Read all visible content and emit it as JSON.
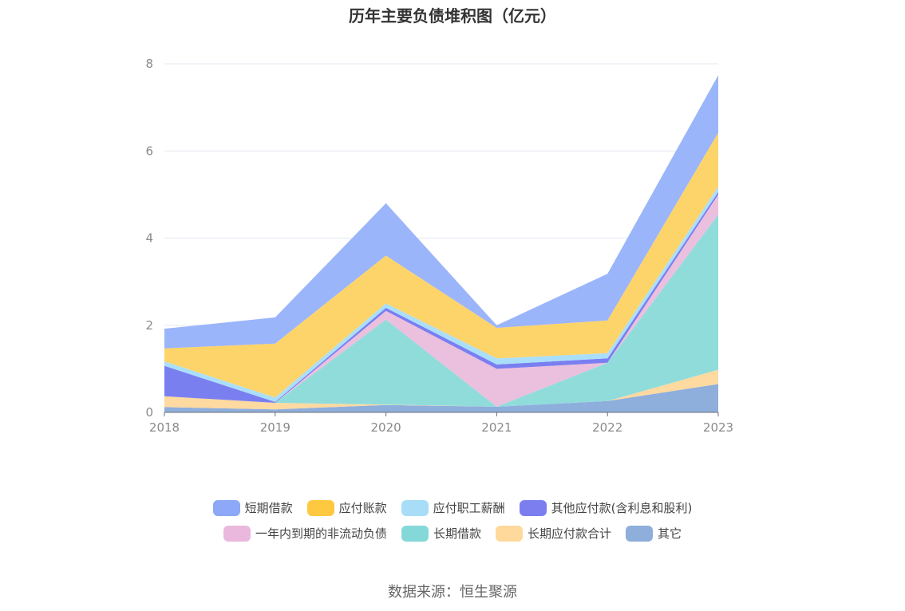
{
  "title": "历年主要负债堆积图（亿元）",
  "source": "数据来源：恒生聚源",
  "chart_data": {
    "type": "area",
    "stacked": true,
    "title": "历年主要负债堆积图（亿元）",
    "xlabel": "",
    "ylabel": "",
    "x": [
      "2018",
      "2019",
      "2020",
      "2021",
      "2022",
      "2023"
    ],
    "ylim": [
      0,
      8
    ],
    "yticks": [
      0,
      2,
      4,
      6,
      8
    ],
    "grid": true,
    "legend_position": "bottom",
    "series": [
      {
        "name": "其它",
        "color": "#8eaedc",
        "values": [
          0.12,
          0.07,
          0.17,
          0.13,
          0.26,
          0.65
        ]
      },
      {
        "name": "长期应付款合计",
        "color": "#fed9a0",
        "values": [
          0.25,
          0.15,
          0.01,
          0.0,
          0.0,
          0.33
        ]
      },
      {
        "name": "长期借款",
        "color": "#90dcdb",
        "values": [
          0.0,
          0.0,
          1.95,
          0.0,
          0.88,
          3.56
        ]
      },
      {
        "name": "一年内到期的非流动负债",
        "color": "#ebbfde",
        "values": [
          0.0,
          0.0,
          0.2,
          0.87,
          0.0,
          0.46
        ]
      },
      {
        "name": "其他应付款(含利息和股利)",
        "color": "#7a7ff0",
        "values": [
          0.7,
          0.02,
          0.07,
          0.1,
          0.1,
          0.06
        ]
      },
      {
        "name": "应付职工薪酬",
        "color": "#aadffa",
        "values": [
          0.1,
          0.1,
          0.1,
          0.14,
          0.12,
          0.12
        ]
      },
      {
        "name": "应付账款",
        "color": "#fdd46a",
        "values": [
          0.3,
          1.24,
          1.1,
          0.7,
          0.75,
          1.24
        ]
      },
      {
        "name": "短期借款",
        "color": "#9bb5fb",
        "values": [
          0.45,
          0.6,
          1.2,
          0.06,
          1.07,
          1.32
        ]
      }
    ]
  },
  "legend": {
    "row1": [
      {
        "label": "短期借款",
        "color": "#8ca8f6"
      },
      {
        "label": "应付账款",
        "color": "#fec840"
      },
      {
        "label": "应付职工薪酬",
        "color": "#a8ddf8"
      },
      {
        "label": "其他应付款(含利息和股利)",
        "color": "#7c7ef0"
      }
    ],
    "row2": [
      {
        "label": "一年内到期的非流动负债",
        "color": "#eab8dc"
      },
      {
        "label": "长期借款",
        "color": "#85d8d8"
      },
      {
        "label": "长期应付款合计",
        "color": "#fed99b"
      },
      {
        "label": "其它",
        "color": "#8eaedc"
      }
    ]
  }
}
